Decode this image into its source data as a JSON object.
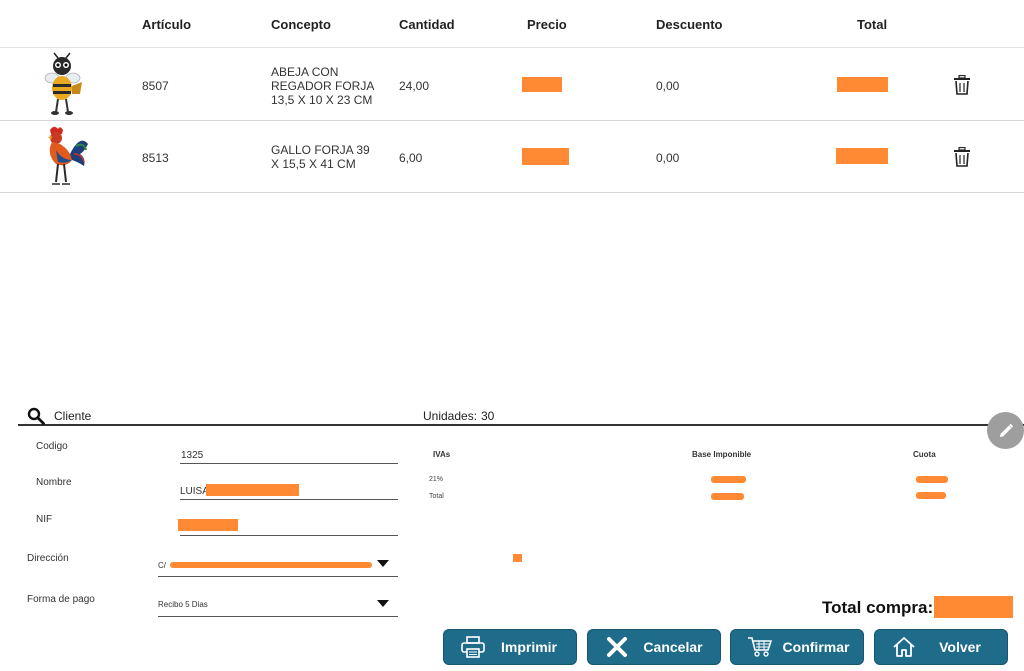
{
  "table": {
    "headers": {
      "articulo": "Artículo",
      "concepto": "Concepto",
      "cantidad": "Cantidad",
      "precio": "Precio",
      "descuento": "Descuento",
      "total": "Total"
    },
    "rows": [
      {
        "image": "bee-figure",
        "articulo": "8507",
        "concepto": "ABEJA CON REGADOR FORJA 13,5 X 10 X 23 CM",
        "cantidad": "24,00",
        "descuento": "0,00"
      },
      {
        "image": "rooster-figure",
        "articulo": "8513",
        "concepto": "GALLO FORJA 39 X 15,5 X 41 CM",
        "cantidad": "6,00",
        "descuento": "0,00"
      }
    ]
  },
  "client": {
    "title": "Cliente",
    "unidades_label": "Unidades:",
    "unidades_value": "30",
    "codigo_label": "Codigo",
    "codigo_value": "1325",
    "nombre_label": "Nombre",
    "nombre_value": "LUISA",
    "nif_label": "NIF",
    "direccion_label": "Dirección",
    "direccion_prefix": "C/",
    "forma_pago_label": "Forma de pago",
    "forma_pago_value": "Recibo 5 Dias"
  },
  "taxes": {
    "ivas_label": "IVAs",
    "base_label": "Base Imponible",
    "cuota_label": "Cuota",
    "rows": [
      "21%",
      "Total"
    ]
  },
  "summary": {
    "total_label": "Total compra:"
  },
  "buttons": {
    "imprimir": "Imprimir",
    "cancelar": "Cancelar",
    "confirmar": "Confirmar",
    "volver": "Volver"
  },
  "colors": {
    "redaction": "#ff8a33",
    "button": "#1f6b8a"
  }
}
